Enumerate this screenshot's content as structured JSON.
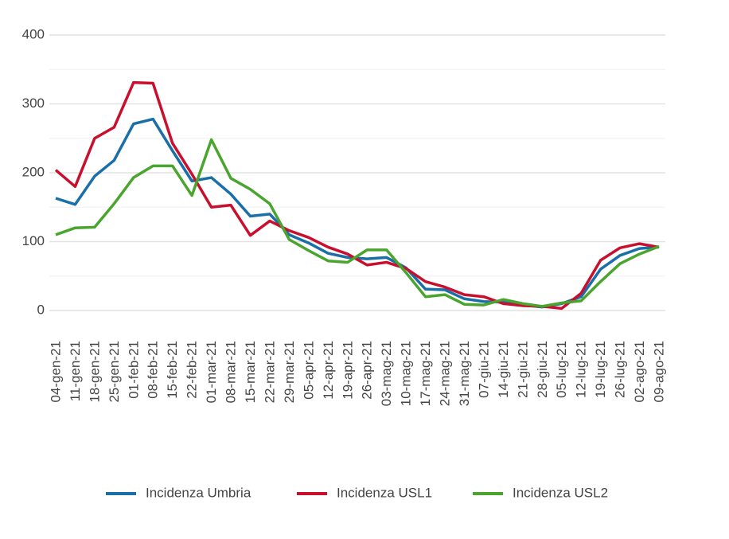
{
  "chart_data": {
    "type": "line",
    "categories": [
      "04-gen-21",
      "11-gen-21",
      "18-gen-21",
      "25-gen-21",
      "01-feb-21",
      "08-feb-21",
      "15-feb-21",
      "22-feb-21",
      "01-mar-21",
      "08-mar-21",
      "15-mar-21",
      "22-mar-21",
      "29-mar-21",
      "05-apr-21",
      "12-apr-21",
      "19-apr-21",
      "26-apr-21",
      "03-mag-21",
      "10-mag-21",
      "17-mag-21",
      "24-mag-21",
      "31-mag-21",
      "07-giu-21",
      "14-giu-21",
      "21-giu-21",
      "28-giu-21",
      "05-lug-21",
      "12-lug-21",
      "19-lug-21",
      "26-lug-21",
      "02-ago-21",
      "09-ago-21"
    ],
    "series": [
      {
        "name": "Incidenza Umbria",
        "color": "#1a6fa8",
        "values": [
          163,
          154,
          195,
          218,
          271,
          278,
          232,
          188,
          193,
          169,
          137,
          140,
          110,
          98,
          83,
          77,
          75,
          77,
          62,
          31,
          30,
          17,
          13,
          12,
          8,
          5,
          10,
          20,
          60,
          80,
          90,
          92
        ]
      },
      {
        "name": "Incidenza USL1",
        "color": "#c8102e",
        "values": [
          204,
          180,
          250,
          266,
          331,
          330,
          243,
          198,
          150,
          153,
          109,
          130,
          116,
          106,
          92,
          82,
          66,
          70,
          61,
          42,
          34,
          23,
          20,
          10,
          7,
          6,
          3,
          25,
          73,
          91,
          97,
          92
        ]
      },
      {
        "name": "Incidenza USL2",
        "color": "#4aa52e",
        "values": [
          110,
          120,
          121,
          155,
          193,
          210,
          210,
          167,
          248,
          192,
          176,
          155,
          103,
          87,
          72,
          70,
          88,
          88,
          55,
          20,
          23,
          9,
          8,
          16,
          10,
          6,
          11,
          14,
          42,
          68,
          82,
          93
        ]
      }
    ],
    "ylim": [
      0,
      400
    ],
    "yticks": [
      0,
      100,
      200,
      300,
      400
    ],
    "minor_grid": [
      50,
      150,
      250,
      350
    ],
    "grid": true,
    "legend": "bottom"
  }
}
